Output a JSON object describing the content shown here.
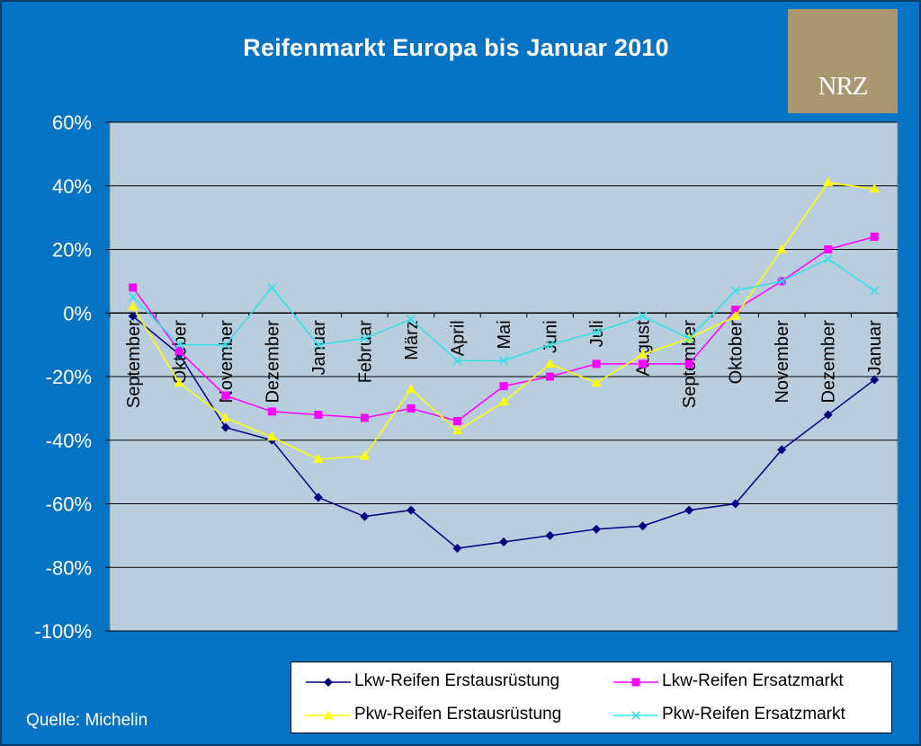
{
  "chart_data": {
    "type": "line",
    "title": "Reifenmarkt Europa bis Januar 2010",
    "xlabel": "",
    "ylabel": "",
    "ylim": [
      -100,
      60
    ],
    "y_ticks": [
      "60%",
      "40%",
      "20%",
      "0%",
      "-20%",
      "-40%",
      "-60%",
      "-80%",
      "-100%"
    ],
    "y_tick_values": [
      60,
      40,
      20,
      0,
      -20,
      -40,
      -60,
      -80,
      -100
    ],
    "categories": [
      "September",
      "Oktober",
      "November",
      "Dezember",
      "Januar",
      "Februar",
      "März",
      "April",
      "Mai",
      "Juni",
      "Juli",
      "August",
      "September",
      "Oktober",
      "November",
      "Dezember",
      "Januar"
    ],
    "grid": true,
    "legend_position": "bottom-right",
    "series": [
      {
        "name": "Lkw-Reifen Erstausrüstung",
        "color": "#000080",
        "marker": "diamond",
        "values": [
          -1,
          -13,
          -36,
          -40,
          -58,
          -64,
          -62,
          -74,
          -72,
          -70,
          -68,
          -67,
          -62,
          -60,
          -43,
          -32,
          -21
        ]
      },
      {
        "name": "Lkw-Reifen Ersatzmarkt",
        "color": "#ff00ff",
        "marker": "square",
        "values": [
          8,
          -12,
          -26,
          -31,
          -32,
          -33,
          -30,
          -34,
          -23,
          -20,
          -16,
          -16,
          -16,
          1,
          10,
          20,
          24
        ]
      },
      {
        "name": "Pkw-Reifen Erstausrüstung",
        "color": "#ffff00",
        "marker": "triangle",
        "values": [
          2,
          -22,
          -33,
          -39,
          -46,
          -45,
          -24,
          -37,
          -28,
          -16,
          -22,
          -13,
          -8,
          -1,
          20,
          41,
          39
        ]
      },
      {
        "name": "Pkw-Reifen Ersatzmarkt",
        "color": "#33e0e8",
        "marker": "x",
        "values": [
          5,
          -10,
          -10,
          8,
          -10,
          -8,
          -2,
          -15,
          -15,
          -10,
          -6,
          -1,
          -8,
          7,
          10,
          17,
          7
        ]
      }
    ]
  },
  "logo": {
    "text": "NRZ"
  },
  "source": "Quelle: Michelin",
  "colors": {
    "background": "#0773c4",
    "plot_area": "#b8cedf",
    "logo": "#a8976f"
  }
}
